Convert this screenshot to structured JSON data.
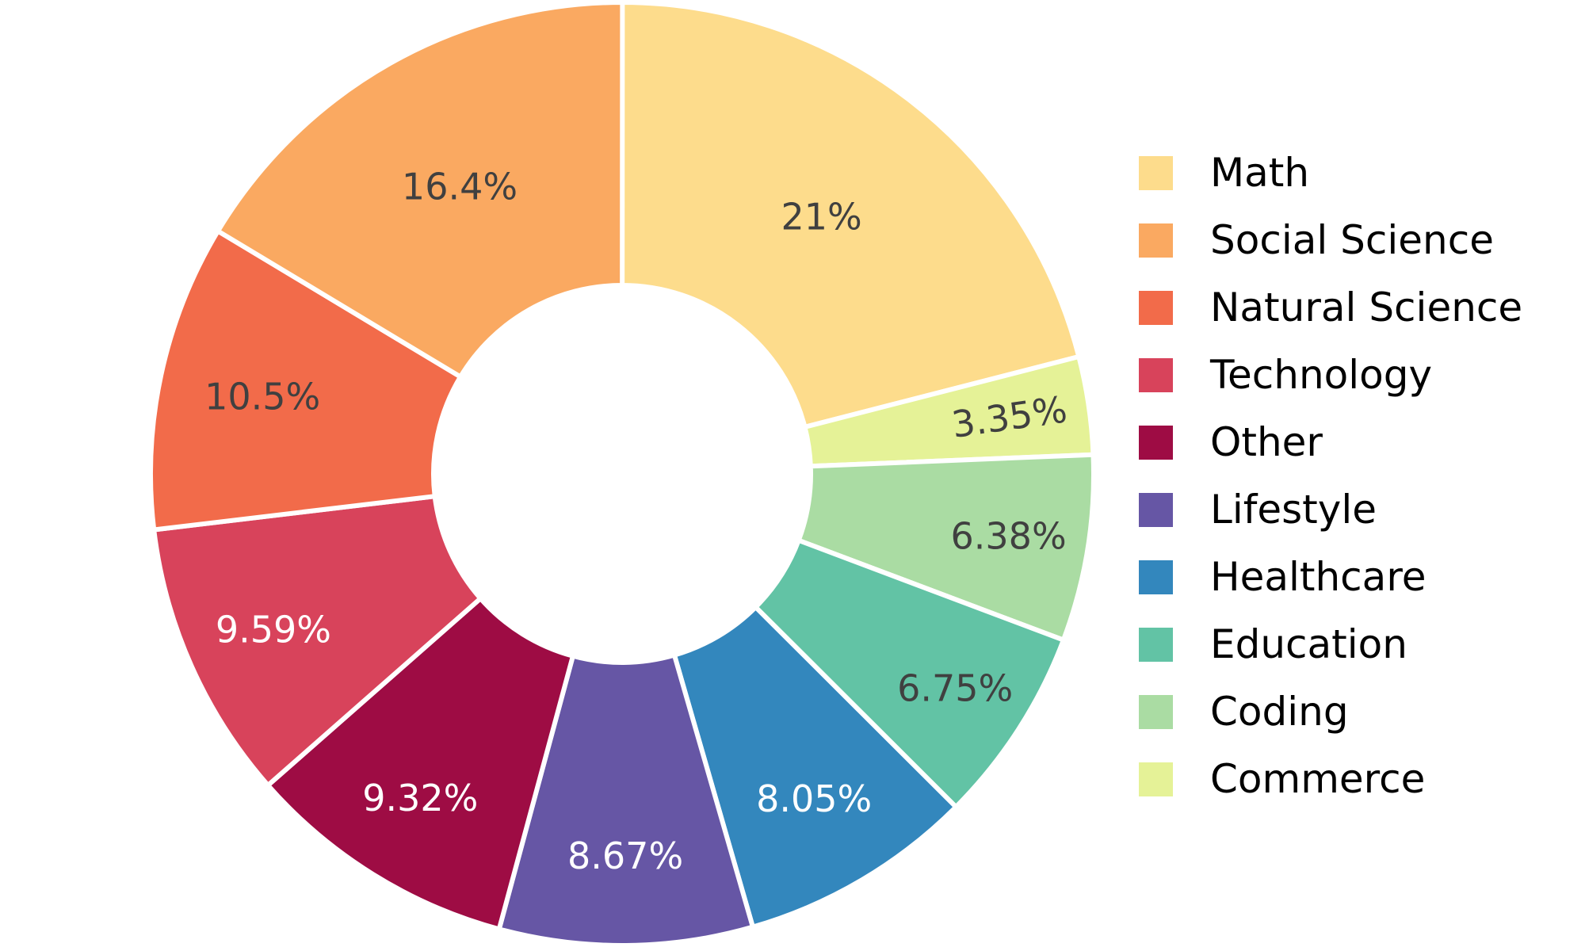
{
  "chart_data": {
    "type": "pie",
    "subtype": "donut",
    "title": "",
    "hole_ratio": 0.4,
    "grid": false,
    "legend_position": "right",
    "background_color": "#ffffff",
    "slice_border_color": "#ffffff",
    "categories": [
      "Math",
      "Social Science",
      "Natural Science",
      "Technology",
      "Other",
      "Lifestyle",
      "Healthcare",
      "Education",
      "Coding",
      "Commerce"
    ],
    "values": [
      21,
      16.4,
      10.5,
      9.59,
      9.32,
      8.67,
      8.05,
      6.75,
      6.38,
      3.35
    ],
    "slices": [
      {
        "label": "Math",
        "value": 21,
        "display": "21%",
        "color": "#FDDC8C",
        "text_color": "#404040",
        "label_r": 0.69,
        "label_rotation": 0
      },
      {
        "label": "Social Science",
        "value": 16.4,
        "display": "16.4%",
        "color": "#FAA961",
        "text_color": "#404040",
        "label_r": 0.7,
        "label_rotation": 0
      },
      {
        "label": "Natural Science",
        "value": 10.5,
        "display": "10.5%",
        "color": "#F26B4A",
        "text_color": "#404040",
        "label_r": 0.78,
        "label_rotation": 0
      },
      {
        "label": "Technology",
        "value": 9.59,
        "display": "9.59%",
        "color": "#D8435B",
        "text_color": "#FFFFFF",
        "label_r": 0.81,
        "label_rotation": 0
      },
      {
        "label": "Other",
        "value": 9.32,
        "display": "9.32%",
        "color": "#9E0C44",
        "text_color": "#FFFFFF",
        "label_r": 0.81,
        "label_rotation": 0
      },
      {
        "label": "Lifestyle",
        "value": 8.67,
        "display": "8.67%",
        "color": "#6656A5",
        "text_color": "#FFFFFF",
        "label_r": 0.81,
        "label_rotation": 0
      },
      {
        "label": "Healthcare",
        "value": 8.05,
        "display": "8.05%",
        "color": "#3387BD",
        "text_color": "#FFFFFF",
        "label_r": 0.8,
        "label_rotation": 0
      },
      {
        "label": "Education",
        "value": 6.75,
        "display": "6.75%",
        "color": "#62C3A5",
        "text_color": "#404040",
        "label_r": 0.84,
        "label_rotation": 0
      },
      {
        "label": "Coding",
        "value": 6.38,
        "display": "6.38%",
        "color": "#AADCA3",
        "text_color": "#404040",
        "label_r": 0.83,
        "label_rotation": 0
      },
      {
        "label": "Commerce",
        "value": 3.35,
        "display": "3.35%",
        "color": "#E5F297",
        "text_color": "#404040",
        "label_r": 0.83,
        "label_rotation": -8
      }
    ],
    "clockwise_order_from_top": [
      "Math",
      "Commerce",
      "Coding",
      "Education",
      "Healthcare",
      "Lifestyle",
      "Other",
      "Technology",
      "Natural Science",
      "Social Science"
    ]
  }
}
